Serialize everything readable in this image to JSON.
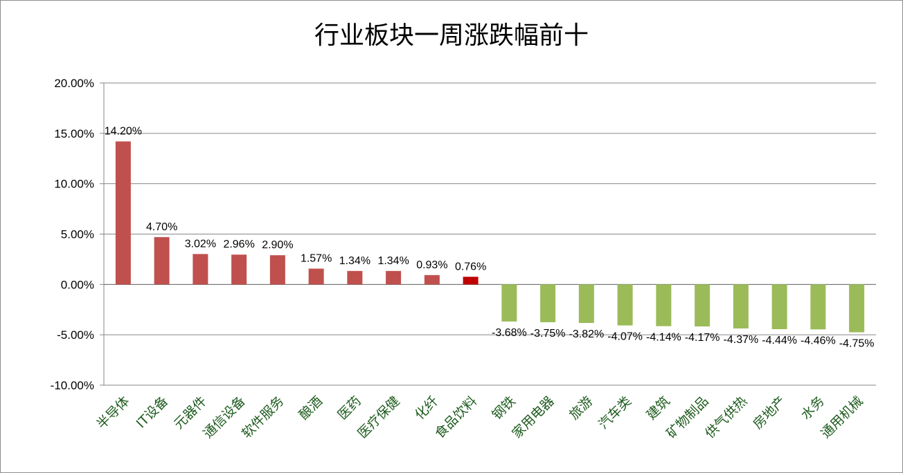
{
  "chart_data": {
    "type": "bar",
    "title": "行业板块一周涨跌幅前十",
    "categories": [
      "半导体",
      "IT设备",
      "元器件",
      "通信设备",
      "软件服务",
      "酿酒",
      "医药",
      "医疗保健",
      "化纤",
      "食品饮料",
      "钢铁",
      "家用电器",
      "旅游",
      "汽车类",
      "建筑",
      "矿物制品",
      "供气供热",
      "房地产",
      "水务",
      "通用机械"
    ],
    "values": [
      14.2,
      4.7,
      3.02,
      2.96,
      2.9,
      1.57,
      1.34,
      1.34,
      0.93,
      0.76,
      -3.68,
      -3.75,
      -3.82,
      -4.07,
      -4.14,
      -4.17,
      -4.37,
      -4.44,
      -4.46,
      -4.75
    ],
    "data_labels": [
      "14.20%",
      "4.70%",
      "3.02%",
      "2.96%",
      "2.90%",
      "1.57%",
      "1.34%",
      "1.34%",
      "0.93%",
      "0.76%",
      "-3.68%",
      "-3.75%",
      "-3.82%",
      "-4.07%",
      "-4.14%",
      "-4.17%",
      "-4.37%",
      "-4.44%",
      "-4.46%",
      "-4.75%"
    ],
    "y_ticks": [
      "-10.00%",
      "-5.00%",
      "0.00%",
      "5.00%",
      "10.00%",
      "15.00%",
      "20.00%"
    ],
    "ylim": [
      -10,
      20
    ],
    "y_unit": "%",
    "grid": true,
    "legend": "none",
    "colors": {
      "positive": "#c0504d",
      "highlight": "#c00000",
      "negative": "#9bbb59",
      "gridline": "#868686",
      "tick_label": "#1e5b1e"
    },
    "highlight_index": 9
  }
}
